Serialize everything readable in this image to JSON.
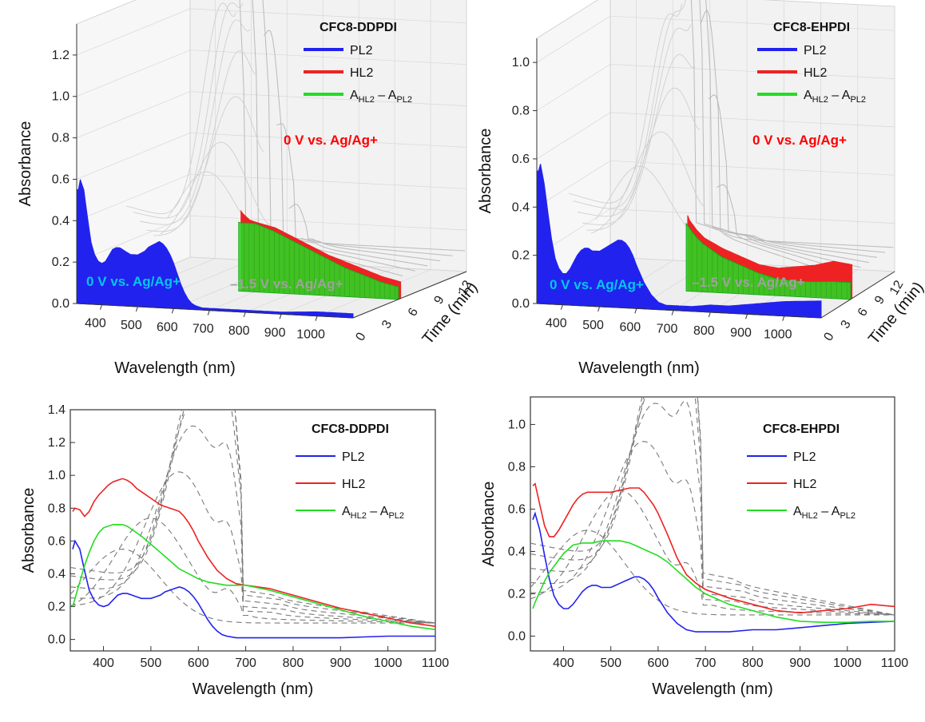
{
  "colors": {
    "pl2": "#2222ee",
    "hl2": "#ee2222",
    "diff": "#22dd22",
    "time_series": "#7a7a7a",
    "ann_blue": "#00c8ee",
    "ann_red": "#ff0000",
    "ann_gray": "#a0a0a0"
  },
  "chart_data": [
    {
      "type": "line",
      "panel": "3d-waterfall",
      "title": "CFC8-DDPDI",
      "xlabel": "Wavelength (nm)",
      "ylabel": "Absorbance",
      "zlabel": "Time (min)",
      "xticks": [
        "400",
        "500",
        "600",
        "700",
        "800",
        "900",
        "1000"
      ],
      "yticks": [
        "0.0",
        "0.2",
        "0.4",
        "0.6",
        "0.8",
        "1.0",
        "1.2"
      ],
      "zticks": [
        "0",
        "3",
        "6",
        "9",
        "12"
      ],
      "xlim": [
        330,
        1100
      ],
      "ylim": [
        0,
        1.35
      ],
      "legend": [
        "PL2",
        "HL2"
      ],
      "legend_diff": {
        "main": "A",
        "sub1": "HL2",
        "mid": " – A",
        "sub2": "PL2"
      },
      "annotations": {
        "pl2": "0 V vs. Ag/Ag+",
        "hl2": "0 V vs. Ag/Ag+",
        "time": "–1.5 V vs. Ag/Ag+"
      },
      "series": [
        {
          "name": "PL2",
          "x": [
            335,
            340,
            350,
            360,
            370,
            380,
            390,
            400,
            410,
            420,
            430,
            440,
            450,
            460,
            470,
            480,
            490,
            500,
            510,
            520,
            530,
            540,
            550,
            560,
            570,
            580,
            590,
            600,
            610,
            620,
            630,
            640,
            650,
            660,
            680,
            700,
            750,
            800,
            850,
            900,
            950,
            1000,
            1050,
            1100
          ],
          "values": [
            0.55,
            0.6,
            0.55,
            0.42,
            0.3,
            0.24,
            0.21,
            0.2,
            0.21,
            0.24,
            0.27,
            0.28,
            0.28,
            0.27,
            0.26,
            0.25,
            0.25,
            0.25,
            0.26,
            0.27,
            0.29,
            0.3,
            0.31,
            0.32,
            0.31,
            0.29,
            0.26,
            0.22,
            0.17,
            0.12,
            0.08,
            0.05,
            0.03,
            0.02,
            0.01,
            0.01,
            0.01,
            0.01,
            0.01,
            0.01,
            0.015,
            0.02,
            0.02,
            0.02
          ]
        },
        {
          "name": "HL2",
          "x": [
            335,
            340,
            350,
            360,
            370,
            380,
            390,
            400,
            410,
            420,
            430,
            440,
            450,
            460,
            470,
            480,
            490,
            500,
            510,
            520,
            530,
            540,
            550,
            560,
            570,
            580,
            590,
            600,
            620,
            640,
            660,
            680,
            700,
            750,
            800,
            850,
            900,
            950,
            1000,
            1050,
            1100
          ],
          "values": [
            0.78,
            0.8,
            0.79,
            0.75,
            0.78,
            0.84,
            0.88,
            0.91,
            0.94,
            0.96,
            0.97,
            0.98,
            0.97,
            0.95,
            0.92,
            0.9,
            0.88,
            0.86,
            0.84,
            0.82,
            0.81,
            0.8,
            0.79,
            0.78,
            0.75,
            0.71,
            0.66,
            0.6,
            0.5,
            0.42,
            0.37,
            0.34,
            0.33,
            0.31,
            0.27,
            0.23,
            0.19,
            0.16,
            0.13,
            0.1,
            0.08
          ]
        },
        {
          "name": "A_HL2 – A_PL2",
          "x": [
            335,
            340,
            350,
            360,
            370,
            380,
            390,
            400,
            410,
            420,
            430,
            440,
            450,
            460,
            480,
            500,
            520,
            540,
            560,
            580,
            600,
            620,
            640,
            660,
            680,
            700,
            750,
            800,
            850,
            900,
            950,
            1000,
            1050,
            1100
          ],
          "values": [
            0.2,
            0.25,
            0.35,
            0.45,
            0.53,
            0.6,
            0.65,
            0.68,
            0.69,
            0.7,
            0.7,
            0.7,
            0.69,
            0.67,
            0.63,
            0.58,
            0.53,
            0.48,
            0.43,
            0.4,
            0.37,
            0.35,
            0.34,
            0.33,
            0.33,
            0.33,
            0.3,
            0.26,
            0.22,
            0.18,
            0.14,
            0.11,
            0.08,
            0.06
          ]
        }
      ],
      "time_series": [
        {
          "peak_wl": 440,
          "peak": 0.45,
          "red": 0.0
        },
        {
          "peak_wl": 500,
          "peak": 0.6,
          "red": 0.15
        },
        {
          "peak_wl": 560,
          "peak": 0.85,
          "red": 0.3
        },
        {
          "peak_wl": 590,
          "peak": 1.1,
          "red": 0.45
        },
        {
          "peak_wl": 600,
          "peak": 1.25,
          "red": 0.65
        },
        {
          "peak_wl": 605,
          "peak": 1.32,
          "red": 0.85
        },
        {
          "peak_wl": 600,
          "peak": 1.3,
          "red": 1.0
        }
      ],
      "time_label_wl": [
        1045,
        1005
      ]
    },
    {
      "type": "line",
      "panel": "3d-waterfall",
      "title": "CFC8-EHPDI",
      "xlabel": "Wavelength (nm)",
      "ylabel": "Absorbance",
      "zlabel": "Time (min)",
      "xticks": [
        "400",
        "500",
        "600",
        "700",
        "800",
        "900",
        "1000"
      ],
      "yticks": [
        "0.0",
        "0.2",
        "0.4",
        "0.6",
        "0.8",
        "1.0"
      ],
      "zticks": [
        "0",
        "3",
        "6",
        "9",
        "12"
      ],
      "xlim": [
        330,
        1100
      ],
      "ylim": [
        0,
        1.1
      ],
      "legend": [
        "PL2",
        "HL2"
      ],
      "legend_diff": {
        "main": "A",
        "sub1": "HL2",
        "mid": " – A",
        "sub2": "PL2"
      },
      "annotations": {
        "pl2": "0 V vs. Ag/Ag+",
        "hl2": "0 V vs. Ag/Ag+",
        "time": "–1.5 V vs. Ag/Ag+"
      },
      "series": [
        {
          "name": "PL2",
          "x": [
            335,
            340,
            350,
            360,
            370,
            380,
            390,
            400,
            410,
            420,
            430,
            440,
            450,
            460,
            470,
            480,
            490,
            500,
            510,
            520,
            530,
            540,
            550,
            560,
            570,
            580,
            590,
            600,
            620,
            640,
            660,
            680,
            700,
            750,
            800,
            850,
            900,
            950,
            1000,
            1050,
            1100
          ],
          "values": [
            0.55,
            0.58,
            0.5,
            0.38,
            0.27,
            0.19,
            0.15,
            0.13,
            0.13,
            0.15,
            0.18,
            0.21,
            0.23,
            0.24,
            0.24,
            0.23,
            0.23,
            0.23,
            0.24,
            0.25,
            0.26,
            0.27,
            0.28,
            0.28,
            0.27,
            0.25,
            0.22,
            0.18,
            0.11,
            0.06,
            0.03,
            0.02,
            0.02,
            0.02,
            0.03,
            0.03,
            0.04,
            0.05,
            0.06,
            0.065,
            0.07
          ]
        },
        {
          "name": "HL2",
          "x": [
            335,
            340,
            350,
            360,
            370,
            380,
            390,
            400,
            410,
            420,
            430,
            440,
            450,
            460,
            470,
            480,
            500,
            520,
            540,
            550,
            560,
            570,
            580,
            590,
            600,
            620,
            640,
            660,
            680,
            700,
            750,
            800,
            850,
            900,
            950,
            1000,
            1050,
            1100
          ],
          "values": [
            0.71,
            0.72,
            0.62,
            0.52,
            0.47,
            0.47,
            0.5,
            0.54,
            0.58,
            0.62,
            0.65,
            0.67,
            0.68,
            0.68,
            0.68,
            0.68,
            0.68,
            0.69,
            0.7,
            0.7,
            0.7,
            0.68,
            0.65,
            0.62,
            0.58,
            0.48,
            0.37,
            0.29,
            0.25,
            0.22,
            0.18,
            0.15,
            0.12,
            0.11,
            0.12,
            0.13,
            0.15,
            0.14
          ]
        },
        {
          "name": "A_HL2 – A_PL2",
          "x": [
            335,
            340,
            350,
            360,
            370,
            380,
            390,
            400,
            420,
            440,
            460,
            480,
            500,
            520,
            540,
            560,
            580,
            600,
            620,
            640,
            660,
            680,
            700,
            750,
            800,
            850,
            900,
            950,
            1000,
            1050,
            1100
          ],
          "values": [
            0.13,
            0.16,
            0.21,
            0.26,
            0.3,
            0.33,
            0.36,
            0.39,
            0.43,
            0.44,
            0.44,
            0.45,
            0.45,
            0.45,
            0.44,
            0.42,
            0.4,
            0.38,
            0.35,
            0.31,
            0.27,
            0.23,
            0.2,
            0.15,
            0.12,
            0.09,
            0.07,
            0.065,
            0.065,
            0.07,
            0.07
          ]
        }
      ],
      "time_series": [
        {
          "peak_wl": 450,
          "peak": 0.4,
          "red": 0.0
        },
        {
          "peak_wl": 520,
          "peak": 0.55,
          "red": 0.15
        },
        {
          "peak_wl": 570,
          "peak": 0.75,
          "red": 0.3
        },
        {
          "peak_wl": 595,
          "peak": 0.9,
          "red": 0.45
        },
        {
          "peak_wl": 605,
          "peak": 1.0,
          "red": 0.65
        },
        {
          "peak_wl": 610,
          "peak": 1.05,
          "red": 0.85
        },
        {
          "peak_wl": 605,
          "peak": 1.02,
          "red": 1.0
        }
      ],
      "time_label_wl": [
        1045,
        1005
      ]
    },
    {
      "type": "line",
      "panel": "2d",
      "title": "CFC8-DDPDI",
      "xlabel": "Wavelength (nm)",
      "ylabel": "Absorbance",
      "xticks": [
        "400",
        "500",
        "600",
        "700",
        "800",
        "900",
        "1000",
        "1100"
      ],
      "yticks": [
        "0.0",
        "0.2",
        "0.4",
        "0.6",
        "0.8",
        "1.0",
        "1.2",
        "1.4"
      ],
      "xlim": [
        330,
        1100
      ],
      "ylim": [
        -0.07,
        1.4
      ],
      "legend": [
        "PL2",
        "HL2"
      ],
      "legend_diff": {
        "main": "A",
        "sub1": "HL2",
        "mid": " – A",
        "sub2": "PL2"
      },
      "series_ref": 0,
      "time_series_ref": 0
    },
    {
      "type": "line",
      "panel": "2d",
      "title": "CFC8-EHPDI",
      "xlabel": "Wavelength (nm)",
      "ylabel": "Absorbance",
      "xticks": [
        "400",
        "500",
        "600",
        "700",
        "800",
        "900",
        "1000",
        "1100"
      ],
      "yticks": [
        "0.0",
        "0.2",
        "0.4",
        "0.6",
        "0.8",
        "1.0"
      ],
      "xlim": [
        330,
        1100
      ],
      "ylim": [
        -0.07,
        1.13
      ],
      "legend": [
        "PL2",
        "HL2"
      ],
      "legend_diff": {
        "main": "A",
        "sub1": "HL2",
        "mid": " – A",
        "sub2": "PL2"
      },
      "series_ref": 1,
      "time_series_ref": 1
    }
  ]
}
